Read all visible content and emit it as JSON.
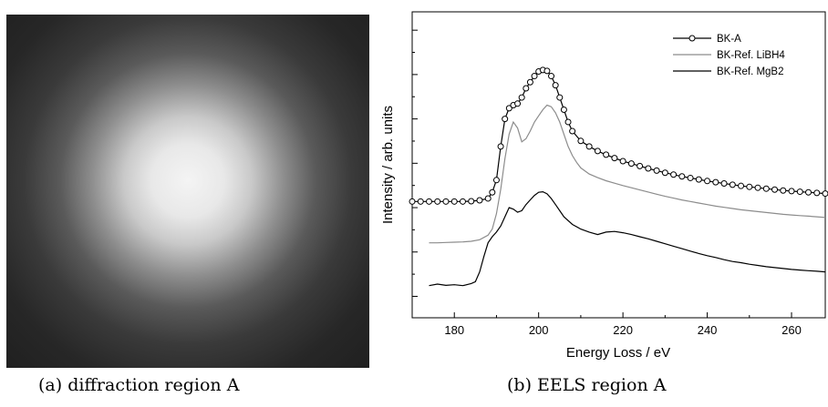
{
  "figure": {
    "caption_a": "(a) diffraction region A",
    "caption_b": "(b) EELS region A"
  },
  "chart_data": {
    "type": "line",
    "xlabel": "Energy Loss / eV",
    "ylabel": "Intensity / arb. units",
    "xlim": [
      170,
      268
    ],
    "xticks": [
      180,
      200,
      220,
      240,
      260
    ],
    "yticks_unlabeled": 7,
    "legend_position": "top-right",
    "series": [
      {
        "name": "BK-A",
        "marker": "open-circle",
        "color": "#000000",
        "x": [
          170,
          172,
          174,
          176,
          178,
          180,
          182,
          184,
          186,
          188,
          189,
          190,
          191,
          192,
          193,
          194,
          195,
          196,
          197,
          198,
          199,
          200,
          201,
          202,
          203,
          204,
          205,
          206,
          207,
          208,
          210,
          212,
          214,
          216,
          218,
          220,
          222,
          224,
          226,
          228,
          230,
          232,
          234,
          236,
          238,
          240,
          242,
          244,
          246,
          248,
          250,
          252,
          254,
          256,
          258,
          260,
          262,
          264,
          266,
          268
        ],
        "y": [
          0.38,
          0.38,
          0.38,
          0.38,
          0.38,
          0.38,
          0.38,
          0.381,
          0.384,
          0.39,
          0.41,
          0.45,
          0.56,
          0.65,
          0.685,
          0.695,
          0.7,
          0.72,
          0.75,
          0.77,
          0.79,
          0.805,
          0.81,
          0.807,
          0.79,
          0.76,
          0.72,
          0.68,
          0.64,
          0.61,
          0.578,
          0.56,
          0.545,
          0.533,
          0.522,
          0.512,
          0.504,
          0.496,
          0.488,
          0.481,
          0.474,
          0.468,
          0.462,
          0.457,
          0.452,
          0.447,
          0.443,
          0.439,
          0.435,
          0.431,
          0.428,
          0.425,
          0.422,
          0.419,
          0.416,
          0.414,
          0.412,
          0.41,
          0.408,
          0.406
        ]
      },
      {
        "name": "BK-Ref. LiBH4",
        "marker": "none",
        "color": "#8c8c8c",
        "x": [
          174,
          176,
          178,
          180,
          182,
          184,
          186,
          188,
          189,
          190,
          191,
          192,
          193,
          194,
          195,
          196,
          197,
          198,
          199,
          200,
          201,
          202,
          203,
          204,
          205,
          206,
          207,
          208,
          209,
          210,
          212,
          214,
          216,
          218,
          220,
          222,
          224,
          226,
          228,
          230,
          232,
          234,
          236,
          238,
          240,
          242,
          244,
          246,
          248,
          250,
          252,
          254,
          256,
          258,
          260,
          262,
          264,
          266,
          268
        ],
        "y": [
          0.245,
          0.245,
          0.246,
          0.247,
          0.248,
          0.25,
          0.255,
          0.27,
          0.29,
          0.34,
          0.42,
          0.52,
          0.6,
          0.64,
          0.62,
          0.575,
          0.585,
          0.61,
          0.64,
          0.66,
          0.68,
          0.695,
          0.69,
          0.67,
          0.64,
          0.6,
          0.56,
          0.53,
          0.508,
          0.49,
          0.47,
          0.458,
          0.448,
          0.44,
          0.432,
          0.425,
          0.418,
          0.411,
          0.404,
          0.397,
          0.391,
          0.385,
          0.38,
          0.375,
          0.37,
          0.365,
          0.361,
          0.357,
          0.353,
          0.35,
          0.347,
          0.344,
          0.341,
          0.338,
          0.336,
          0.334,
          0.332,
          0.33,
          0.328
        ]
      },
      {
        "name": "BK-Ref. MgB2",
        "marker": "none",
        "color": "#000000",
        "x": [
          174,
          176,
          178,
          180,
          182,
          184,
          185,
          186,
          187,
          188,
          189,
          190,
          191,
          192,
          193,
          194,
          195,
          196,
          197,
          198,
          199,
          200,
          201,
          202,
          203,
          204,
          205,
          206,
          208,
          210,
          212,
          214,
          216,
          218,
          220,
          222,
          224,
          226,
          228,
          230,
          232,
          234,
          236,
          238,
          240,
          242,
          244,
          246,
          248,
          250,
          252,
          254,
          256,
          258,
          260,
          262,
          264,
          266,
          268
        ],
        "y": [
          0.105,
          0.11,
          0.106,
          0.108,
          0.105,
          0.112,
          0.118,
          0.15,
          0.2,
          0.245,
          0.265,
          0.28,
          0.3,
          0.33,
          0.36,
          0.355,
          0.345,
          0.35,
          0.37,
          0.385,
          0.4,
          0.41,
          0.412,
          0.405,
          0.39,
          0.37,
          0.35,
          0.33,
          0.305,
          0.29,
          0.28,
          0.272,
          0.28,
          0.282,
          0.278,
          0.272,
          0.265,
          0.258,
          0.25,
          0.242,
          0.234,
          0.226,
          0.218,
          0.21,
          0.203,
          0.197,
          0.19,
          0.184,
          0.18,
          0.175,
          0.171,
          0.167,
          0.164,
          0.161,
          0.158,
          0.156,
          0.154,
          0.152,
          0.15
        ]
      }
    ]
  }
}
